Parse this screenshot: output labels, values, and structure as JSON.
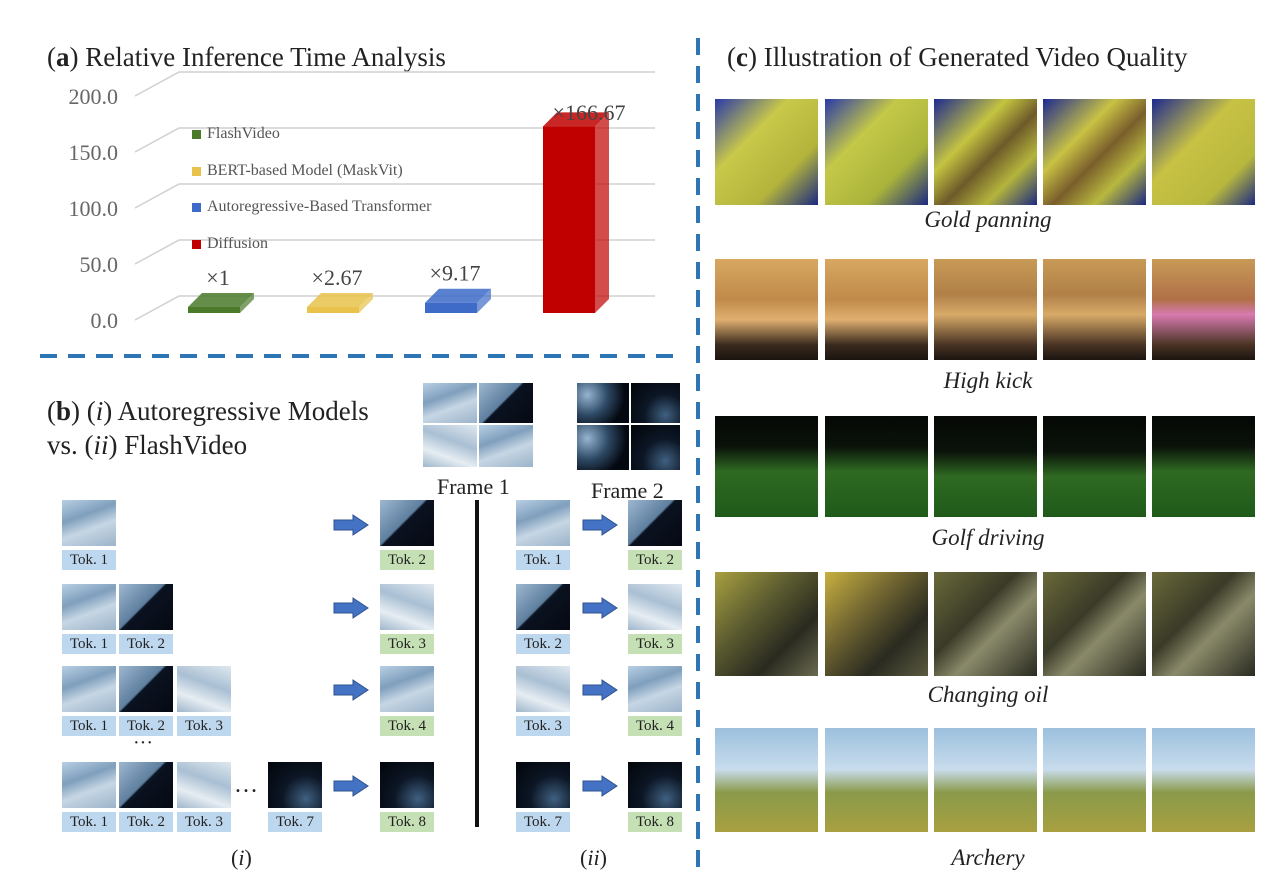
{
  "panel_a": {
    "title_letter": "a",
    "title_text": "Relative Inference Time Analysis",
    "y_ticks": [
      "200.0",
      "150.0",
      "100.0",
      "50.0",
      "0.0"
    ],
    "legend": [
      {
        "label": "FlashVideo",
        "color": "#4a7a2a"
      },
      {
        "label": "BERT-based Model (MaskVit)",
        "color": "#e8c24a"
      },
      {
        "label": "Autoregressive-Based Transformer",
        "color": "#3d6bc7"
      },
      {
        "label": "Diffusion",
        "color": "#c00000"
      }
    ]
  },
  "chart_data": {
    "type": "bar",
    "categories": [
      "FlashVideo",
      "BERT-based Model (MaskVit)",
      "Autoregressive-Based Transformer",
      "Diffusion"
    ],
    "values": [
      1,
      2.67,
      9.17,
      166.67
    ],
    "data_labels": [
      "×1",
      "×2.67",
      "×9.17",
      "×166.67"
    ],
    "colors": [
      "#4a7a2a",
      "#e8c24a",
      "#3d6bc7",
      "#c00000"
    ],
    "ylim": [
      0,
      200
    ],
    "grid": true,
    "legend_position": "top-left"
  },
  "panel_b": {
    "title_letter": "b",
    "title_line1_i": "i",
    "title_line1_rest": "Autoregressive Models",
    "title_line2_pre": "vs.",
    "title_line2_ii": "ii",
    "title_line2_rest": "FlashVideo",
    "frame1": "Frame 1",
    "frame2": "Frame 2",
    "ellipsis_v": "···",
    "ellipsis_h": "…",
    "sub_i": "i",
    "sub_ii": "ii",
    "tok": {
      "t1": "Tok. 1",
      "t2": "Tok. 2",
      "t3": "Tok. 3",
      "t4": "Tok. 4",
      "t7": "Tok. 7",
      "t8": "Tok. 8"
    }
  },
  "panel_c": {
    "title_letter": "c",
    "title_text": "Illustration of Generated Video Quality",
    "captions": [
      "Gold panning",
      "High kick",
      "Golf driving",
      "Changing oil",
      "Archery"
    ]
  }
}
